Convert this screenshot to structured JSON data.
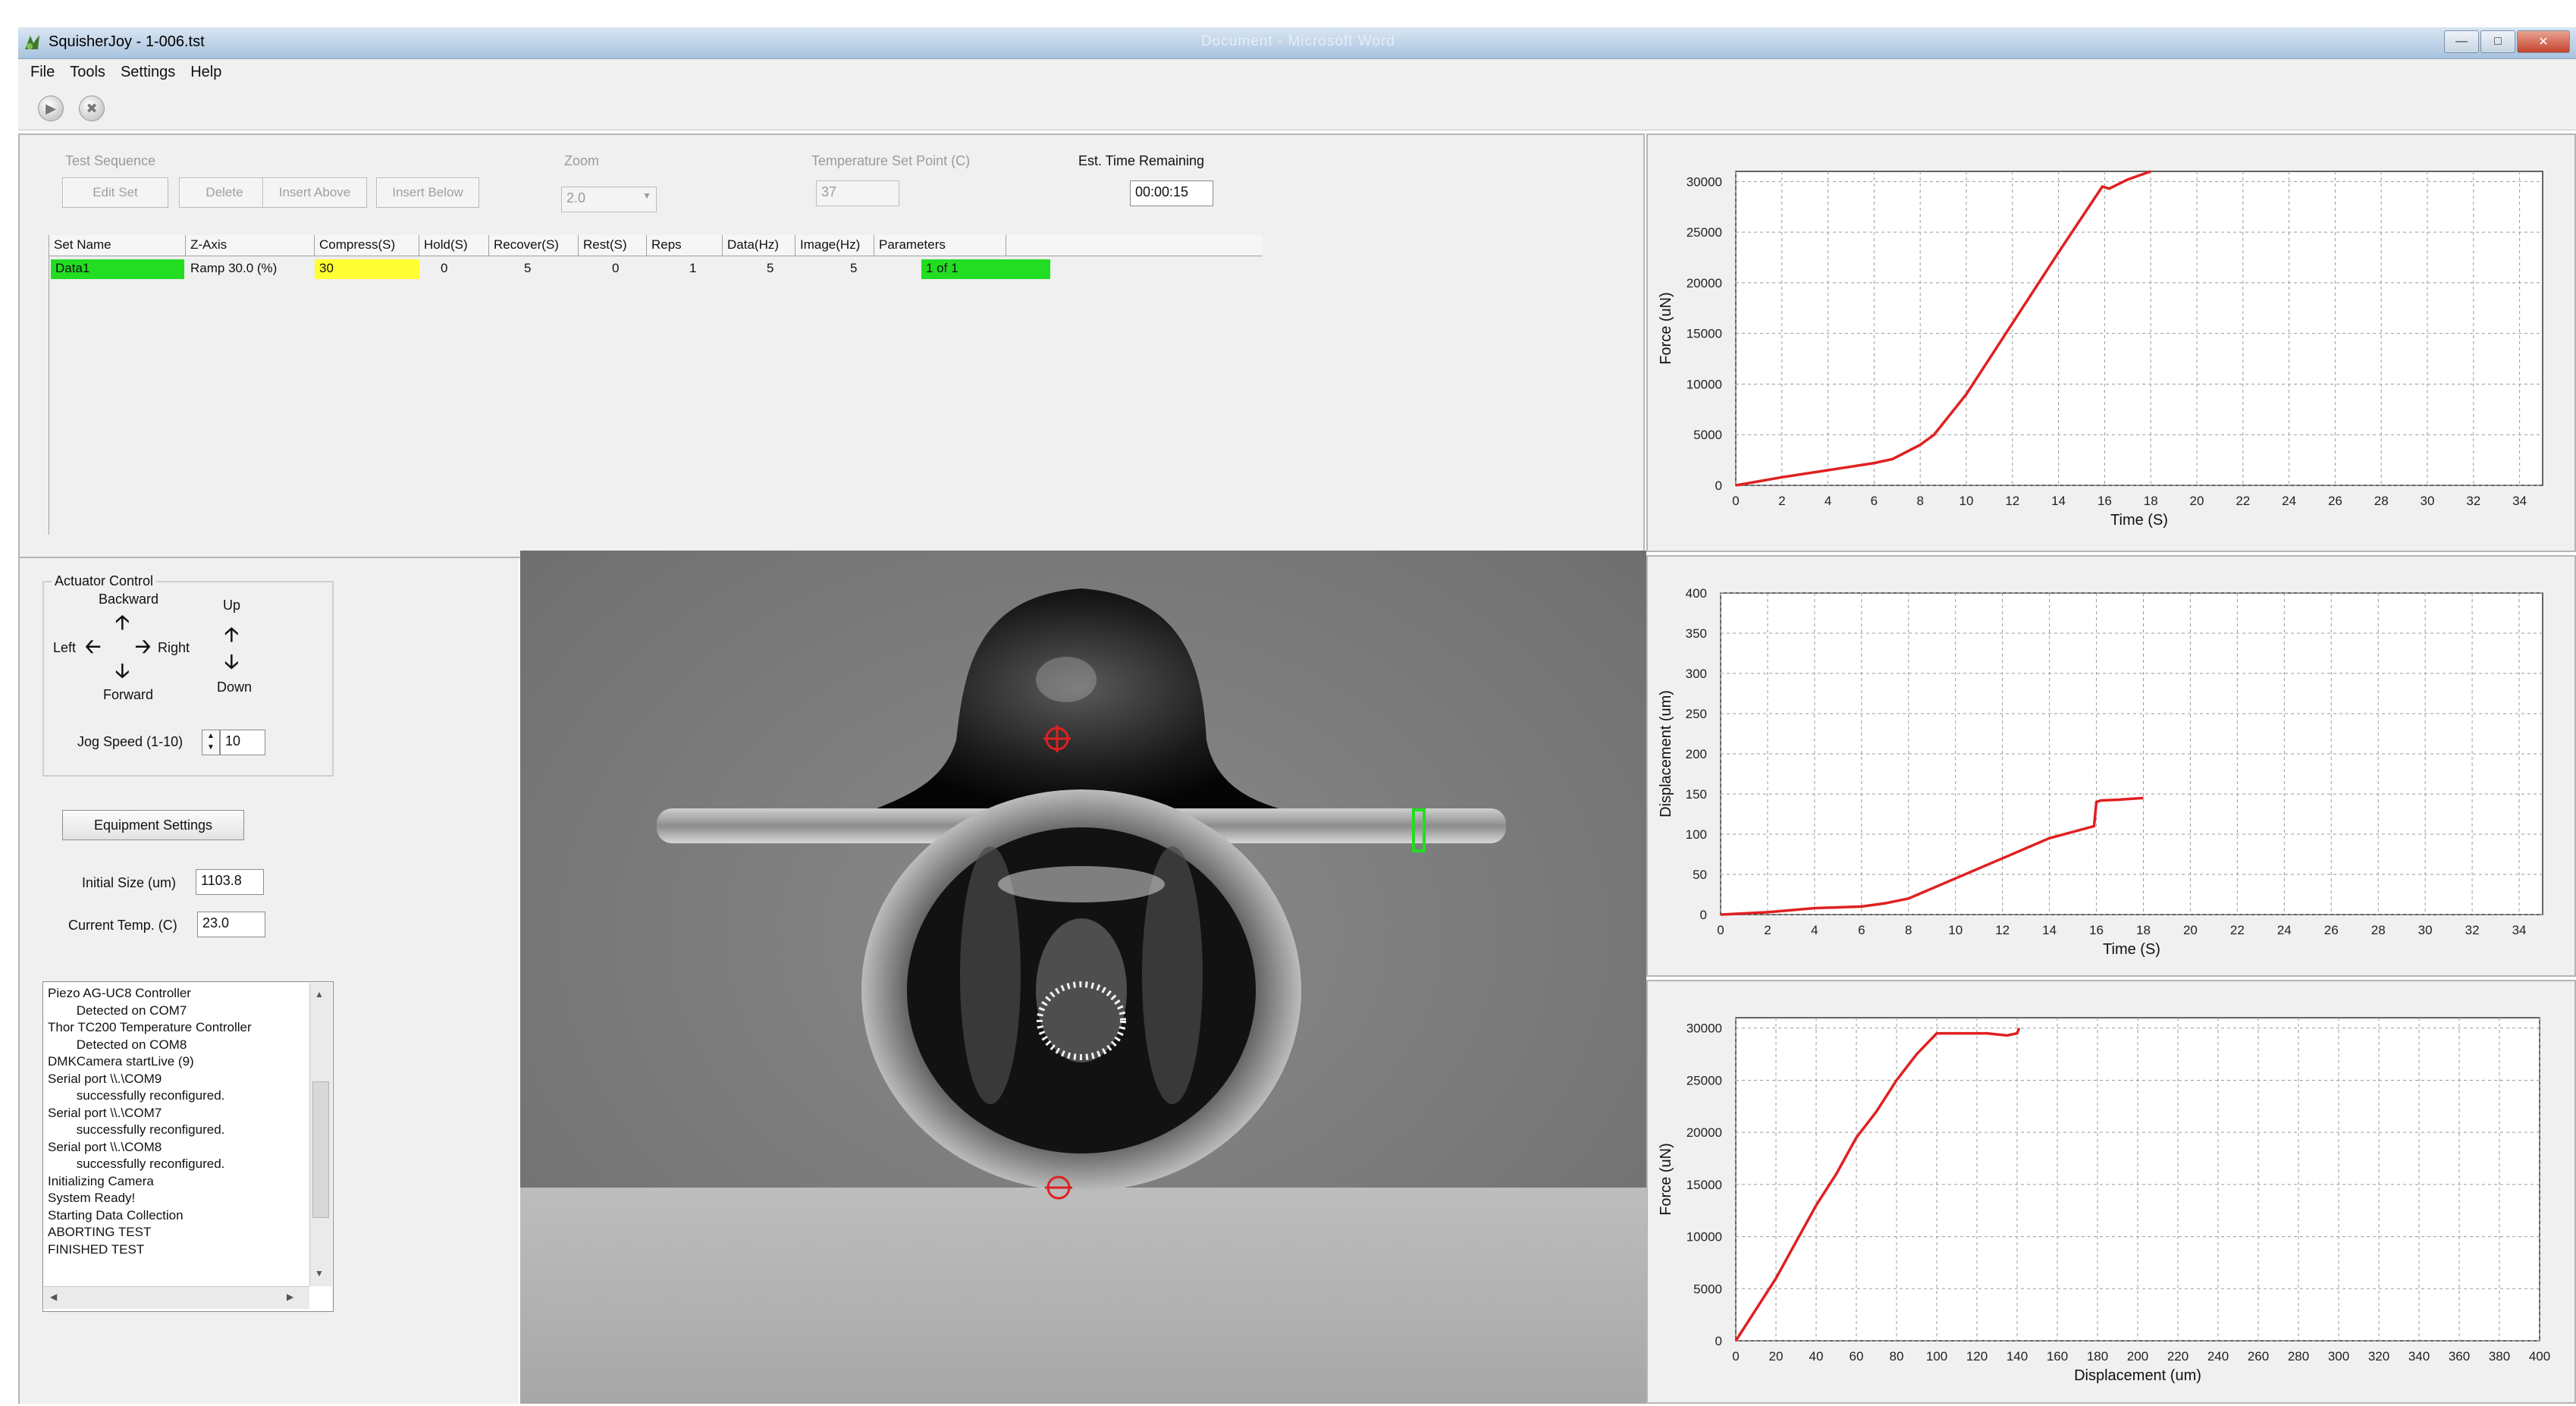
{
  "window": {
    "title": "SquisherJoy - 1-006.tst",
    "blurred_title": "Document - Microsoft Word"
  },
  "menu": [
    "File",
    "Tools",
    "Settings",
    "Help"
  ],
  "toolbar": {
    "icons": [
      "play-icon",
      "stop-icon"
    ]
  },
  "test_sequence": {
    "group_label": "Test Sequence",
    "buttons": {
      "edit_set": "Edit Set",
      "delete": "Delete",
      "insert_above": "Insert Above",
      "insert_below": "Insert Below"
    },
    "zoom_label": "Zoom",
    "zoom_value": "2.0",
    "temp_setpoint_label": "Temperature Set Point (C)",
    "temp_setpoint_value": "37",
    "time_remaining_label": "Est. Time Remaining",
    "time_remaining_value": "00:00:15"
  },
  "table": {
    "headers": [
      "Set Name",
      "Z-Axis",
      "Compress(S)",
      "Hold(S)",
      "Recover(S)",
      "Rest(S)",
      "Reps",
      "Data(Hz)",
      "Image(Hz)",
      "Parameters"
    ],
    "rows": [
      [
        "Data1",
        "Ramp 30.0 (%)",
        "30",
        "0",
        "5",
        "0",
        "1",
        "5",
        "5",
        "1 of 1"
      ]
    ],
    "highlight_colors": {
      "set_name": "#22dd22",
      "compress": "#ffff33",
      "parameters": "#22dd22"
    }
  },
  "actuator": {
    "group_label": "Actuator Control",
    "backward": "Backward",
    "forward": "Forward",
    "left": "Left",
    "right": "Right",
    "up": "Up",
    "down": "Down",
    "jog_label": "Jog Speed (1-10)",
    "jog_value": "10"
  },
  "equipment": {
    "button": "Equipment Settings",
    "initial_size_label": "Initial Size (um)",
    "initial_size_value": "1103.8",
    "current_temp_label": "Current Temp. (C)",
    "current_temp_value": "23.0"
  },
  "log_lines": [
    "Piezo AG-UC8 Controller",
    "        Detected on COM7",
    "Thor TC200 Temperature Controller",
    "        Detected on COM8",
    "DMKCamera startLive (9)",
    "Serial port \\\\.\\COM9",
    "        successfully reconfigured.",
    "Serial port \\\\.\\COM7",
    "        successfully reconfigured.",
    "Serial port \\\\.\\COM8",
    "        successfully reconfigured.",
    "Initializing Camera",
    "System Ready!",
    "Starting Data Collection",
    "ABORTING TEST",
    "FINISHED TEST"
  ],
  "colors": {
    "series": "#e02020",
    "marker": "#e02020",
    "platen_marker": "#22dd22"
  },
  "chart_data": [
    {
      "type": "line",
      "xlabel": "Time (S)",
      "ylabel": "Force (uN)",
      "xlim": [
        0,
        35
      ],
      "ylim": [
        0,
        31000
      ],
      "xticks": [
        0,
        2,
        4,
        6,
        8,
        10,
        12,
        14,
        16,
        18,
        20,
        22,
        24,
        26,
        28,
        30,
        32,
        34
      ],
      "yticks": [
        0,
        5000,
        10000,
        15000,
        20000,
        25000,
        30000
      ],
      "grid": true,
      "series": [
        {
          "x": [
            0,
            2,
            4,
            6,
            6.8,
            8,
            8.6,
            10,
            12,
            14,
            15.9,
            16.2,
            17,
            18
          ],
          "y": [
            0,
            800,
            1500,
            2200,
            2600,
            4000,
            5000,
            9000,
            16000,
            23000,
            29500,
            29300,
            30200,
            31000
          ]
        }
      ]
    },
    {
      "type": "line",
      "xlabel": "Time (S)",
      "ylabel": "Displacement (um)",
      "xlim": [
        0,
        35
      ],
      "ylim": [
        0,
        400
      ],
      "xticks": [
        0,
        2,
        4,
        6,
        8,
        10,
        12,
        14,
        16,
        18,
        20,
        22,
        24,
        26,
        28,
        30,
        32,
        34
      ],
      "yticks": [
        0,
        50,
        100,
        150,
        200,
        250,
        300,
        350,
        400
      ],
      "grid": true,
      "series": [
        {
          "x": [
            0,
            2,
            4,
            6,
            7,
            8,
            10,
            12,
            14,
            15.9,
            16,
            16.2,
            17,
            18
          ],
          "y": [
            0,
            3,
            8,
            10,
            14,
            20,
            45,
            70,
            95,
            110,
            140,
            142,
            143,
            145
          ]
        }
      ]
    },
    {
      "type": "line",
      "xlabel": "Displacement (um)",
      "ylabel": "Force (uN)",
      "xlim": [
        0,
        400
      ],
      "ylim": [
        0,
        31000
      ],
      "xticks": [
        0,
        20,
        40,
        60,
        80,
        100,
        120,
        140,
        160,
        180,
        200,
        220,
        240,
        260,
        280,
        300,
        320,
        340,
        360,
        380,
        400
      ],
      "yticks": [
        0,
        5000,
        10000,
        15000,
        20000,
        25000,
        30000
      ],
      "grid": true,
      "series": [
        {
          "x": [
            0,
            10,
            20,
            30,
            40,
            50,
            60,
            70,
            80,
            90,
            100,
            110,
            115,
            125,
            135,
            140,
            141
          ],
          "y": [
            0,
            3000,
            6000,
            9500,
            13000,
            16000,
            19500,
            22000,
            25000,
            27500,
            29500,
            29500,
            29500,
            29500,
            29300,
            29500,
            30000
          ]
        }
      ]
    }
  ]
}
